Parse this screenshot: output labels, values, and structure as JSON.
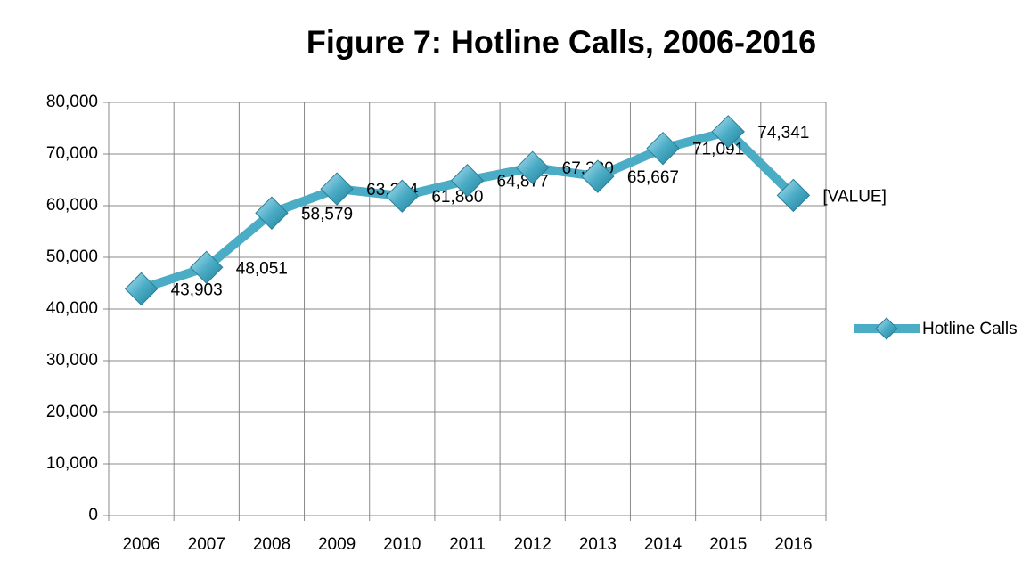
{
  "chart_data": {
    "type": "line",
    "title": "Figure 7: Hotline Calls, 2006-2016",
    "categories": [
      "2006",
      "2007",
      "2008",
      "2009",
      "2010",
      "2011",
      "2012",
      "2013",
      "2014",
      "2015",
      "2016"
    ],
    "series": [
      {
        "name": "Hotline Calls",
        "color": "#4bacc6",
        "values": [
          43903,
          48051,
          58579,
          63264,
          61860,
          64877,
          67380,
          65667,
          71091,
          74341,
          62000
        ],
        "value_labels": [
          "43,903",
          "48,051",
          "58,579",
          "63,264",
          "61,860",
          "64,877",
          "67,380",
          "65,667",
          "71,091",
          "74,341",
          "[VALUE]"
        ]
      }
    ],
    "ylim": [
      0,
      80000
    ],
    "yticks": [
      0,
      {
        "value": 10000,
        "label": "10,000"
      },
      {
        "value": 20000,
        "label": "20,000"
      },
      {
        "value": 30000,
        "label": "30,000"
      },
      {
        "value": 40000,
        "label": "40,000"
      },
      {
        "value": 50000,
        "label": "50,000"
      },
      {
        "value": 60000,
        "label": "60,000"
      },
      {
        "value": 70000,
        "label": "70,000"
      },
      {
        "value": 80000,
        "label": "80,000"
      }
    ],
    "grid": true,
    "legend": "right"
  }
}
